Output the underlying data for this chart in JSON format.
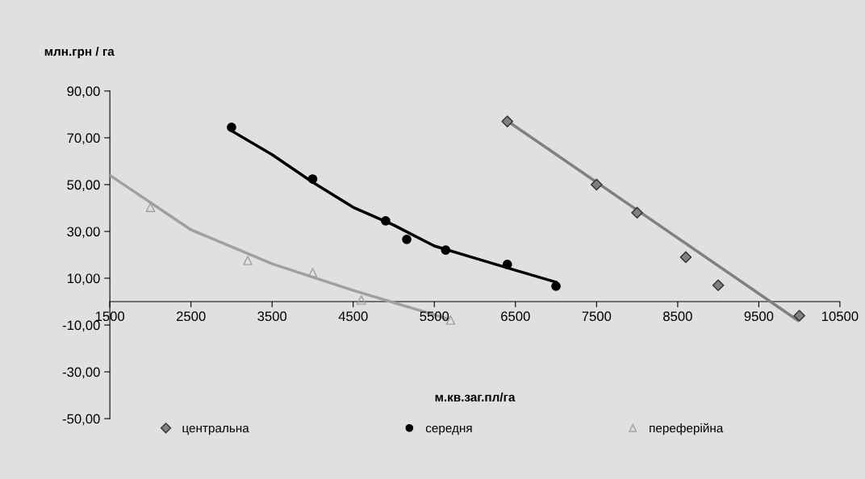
{
  "chart_data": {
    "type": "scatter",
    "ylabel": "млн.грн / га",
    "xlabel": "м.кв.заг.пл/га",
    "xlim": [
      1500,
      10500
    ],
    "xticks": [
      1500,
      2500,
      3500,
      4500,
      5500,
      6500,
      7500,
      8500,
      9500,
      10500
    ],
    "ylim": [
      -50,
      90
    ],
    "yticks": [
      {
        "value": -50,
        "label": "-50,00"
      },
      {
        "value": -30,
        "label": "-30,00"
      },
      {
        "value": -10,
        "label": "-10,00"
      },
      {
        "value": 10,
        "label": "10,00"
      },
      {
        "value": 30,
        "label": "30,00"
      },
      {
        "value": 50,
        "label": "50,00"
      },
      {
        "value": 70,
        "label": "70,00"
      },
      {
        "value": 90,
        "label": "90,00"
      }
    ],
    "grid": false,
    "legend": "bottom",
    "series": [
      {
        "name": "центральна",
        "marker": "diamond",
        "color": "#808080",
        "x": [
          6400,
          7500,
          8000,
          8600,
          9000,
          10000
        ],
        "values": [
          77,
          50,
          38,
          19,
          7,
          -6
        ]
      },
      {
        "name": "середня",
        "marker": "circle",
        "color": "#000000",
        "x": [
          3000,
          4000,
          4900,
          5160,
          5640,
          6400,
          7000
        ],
        "values": [
          74.5,
          52.4,
          34.5,
          26.6,
          22,
          15.9,
          6.6
        ]
      },
      {
        "name": "переферійна",
        "marker": "triangle",
        "color": "#a0a0a0",
        "x": [
          2000,
          3200,
          4000,
          4600,
          5700
        ],
        "values": [
          40.3,
          17.6,
          12.4,
          0.7,
          -7.9
        ]
      },
      {
        "type": "line",
        "marker": "none",
        "color": "#808080",
        "x": [
          6400,
          9980
        ],
        "values": [
          77.2,
          -8
        ]
      },
      {
        "type": "line",
        "marker": "none",
        "color": "#000000",
        "x": [
          3000,
          3500,
          4000,
          4500,
          5000,
          5500,
          6000,
          6500,
          7000
        ],
        "values": [
          73,
          62.8,
          51,
          40.3,
          32.7,
          23.8,
          18.6,
          13.4,
          8.3
        ]
      },
      {
        "type": "line",
        "marker": "none",
        "color": "#a0a0a0",
        "x": [
          1500,
          2500,
          3500,
          4500,
          5650
        ],
        "values": [
          54,
          30.7,
          16.2,
          4.8,
          -7.2
        ]
      }
    ]
  }
}
